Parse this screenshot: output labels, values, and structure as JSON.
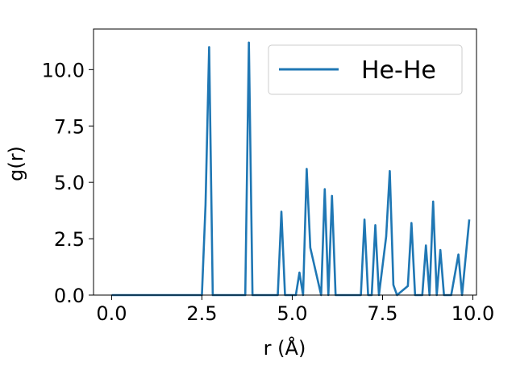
{
  "chart_data": {
    "type": "line",
    "title": "",
    "xlabel": "r (Å)",
    "ylabel": "g(r)",
    "xlim": [
      -0.5,
      10.1
    ],
    "ylim": [
      0,
      11.8
    ],
    "xticks": [
      0.0,
      2.5,
      5.0,
      7.5,
      10.0
    ],
    "xtick_labels": [
      "0.0",
      "2.5",
      "5.0",
      "7.5",
      "10.0"
    ],
    "yticks": [
      0.0,
      2.5,
      5.0,
      7.5,
      10.0
    ],
    "ytick_labels": [
      "0.0",
      "2.5",
      "5.0",
      "7.5",
      "10.0"
    ],
    "grid": false,
    "legend_position": "top-right",
    "series": [
      {
        "name": "He-He",
        "color": "#1f77b4",
        "x": [
          0.0,
          2.5,
          2.6,
          2.7,
          2.8,
          3.7,
          3.8,
          3.9,
          4.6,
          4.7,
          4.8,
          5.1,
          5.2,
          5.3,
          5.4,
          5.5,
          5.8,
          5.9,
          6.0,
          6.1,
          6.2,
          6.9,
          7.0,
          7.1,
          7.2,
          7.3,
          7.4,
          7.6,
          7.7,
          7.8,
          7.9,
          8.2,
          8.3,
          8.4,
          8.6,
          8.7,
          8.8,
          8.9,
          9.0,
          9.1,
          9.2,
          9.4,
          9.6,
          9.7,
          9.9
        ],
        "y": [
          0.0,
          0.0,
          4.0,
          11.0,
          0.0,
          0.0,
          11.2,
          0.0,
          0.0,
          3.7,
          0.0,
          0.0,
          1.0,
          0.0,
          5.6,
          2.1,
          0.0,
          4.7,
          0.0,
          4.4,
          0.0,
          0.0,
          3.35,
          0.0,
          0.0,
          3.1,
          0.0,
          2.6,
          5.5,
          0.45,
          0.0,
          0.4,
          3.2,
          0.0,
          0.0,
          2.2,
          0.0,
          4.15,
          0.0,
          2.0,
          0.0,
          0.0,
          1.8,
          0.0,
          3.35
        ]
      }
    ]
  }
}
